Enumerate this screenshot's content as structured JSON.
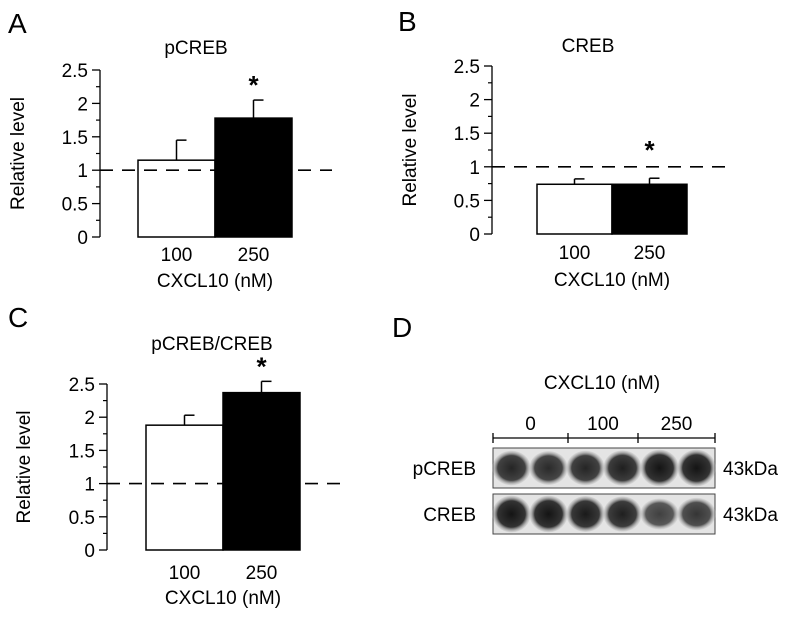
{
  "panels": {
    "a": {
      "letter": "A"
    },
    "b": {
      "letter": "B"
    },
    "c": {
      "letter": "C"
    },
    "d": {
      "letter": "D"
    }
  },
  "chart_data": [
    {
      "type": "bar",
      "title": "pCREB",
      "ylabel": "Relative level",
      "xlabel": "CXCL10 (nM)",
      "categories": [
        "100",
        "250"
      ],
      "values": [
        1.15,
        1.78
      ],
      "errors": [
        0.3,
        0.27
      ],
      "fills": [
        "#ffffff",
        "#000000"
      ],
      "significance": [
        "",
        "*"
      ],
      "reference_line": 1,
      "ylim": [
        0,
        2.5
      ],
      "yticks": [
        "0",
        "0.5",
        "1",
        "1.5",
        "2",
        "2.5"
      ]
    },
    {
      "type": "bar",
      "title": "CREB",
      "ylabel": "Relative level",
      "xlabel": "CXCL10 (nM)",
      "categories": [
        "100",
        "250"
      ],
      "values": [
        0.74,
        0.74
      ],
      "errors": [
        0.08,
        0.09
      ],
      "fills": [
        "#ffffff",
        "#000000"
      ],
      "significance": [
        "",
        "*"
      ],
      "reference_line": 1,
      "ylim": [
        0,
        2.5
      ],
      "yticks": [
        "0",
        "0.5",
        "1",
        "1.5",
        "2",
        "2.5"
      ]
    },
    {
      "type": "bar",
      "title": "pCREB/CREB",
      "ylabel": "Relative level",
      "xlabel": "CXCL10 (nM)",
      "categories": [
        "100",
        "250"
      ],
      "values": [
        1.88,
        2.37
      ],
      "errors": [
        0.15,
        0.17
      ],
      "fills": [
        "#ffffff",
        "#000000"
      ],
      "significance": [
        "",
        "*"
      ],
      "reference_line": 1,
      "ylim": [
        0,
        2.5
      ],
      "yticks": [
        "0",
        "0.5",
        "1",
        "1.5",
        "2",
        "2.5"
      ]
    }
  ],
  "blot": {
    "title": "CXCL10 (nM)",
    "groups": [
      "0",
      "100",
      "250"
    ],
    "rows": [
      {
        "label": "pCREB",
        "size": "43kDa",
        "band_intensity": [
          0.85,
          0.8,
          0.85,
          0.9,
          1.0,
          1.0
        ]
      },
      {
        "label": "CREB",
        "size": "43kDa",
        "band_intensity": [
          1.0,
          1.0,
          0.95,
          0.9,
          0.6,
          0.7
        ]
      }
    ]
  }
}
